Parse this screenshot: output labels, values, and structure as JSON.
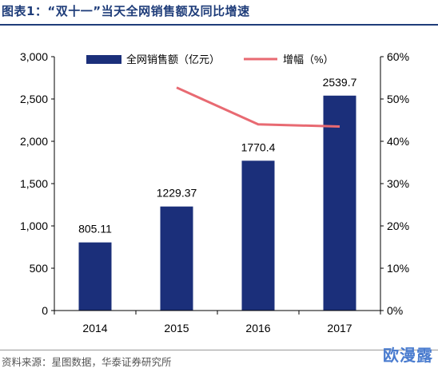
{
  "header": {
    "title": "图表1：“双十一”当天全网销售额及同比增速"
  },
  "footer": {
    "source": "资料来源：星图数据，华泰证券研究所",
    "watermark": "欧漫露"
  },
  "colors": {
    "bar": "#1b2f7a",
    "line": "#e86a72",
    "title": "#1f3d7a"
  },
  "chart_data": {
    "type": "bar",
    "categories": [
      "2014",
      "2015",
      "2016",
      "2017"
    ],
    "series": [
      {
        "name": "全网销售额（亿元）",
        "type": "bar",
        "axis": "left",
        "values": [
          805.11,
          1229.37,
          1770.4,
          2539.7
        ],
        "labels": [
          "805.11",
          "1229.37",
          "1770.4",
          "2539.7"
        ]
      },
      {
        "name": "增幅（%）",
        "type": "line",
        "axis": "right",
        "values": [
          null,
          52.7,
          44.0,
          43.5
        ]
      }
    ],
    "y_left": {
      "min": 0,
      "max": 3000,
      "ticks": [
        "0",
        "500",
        "1,000",
        "1,500",
        "2,000",
        "2,500",
        "3,000"
      ]
    },
    "y_right": {
      "min": 0,
      "max": 60,
      "ticks": [
        "0%",
        "10%",
        "20%",
        "30%",
        "40%",
        "50%",
        "60%"
      ]
    },
    "legend": "top"
  }
}
